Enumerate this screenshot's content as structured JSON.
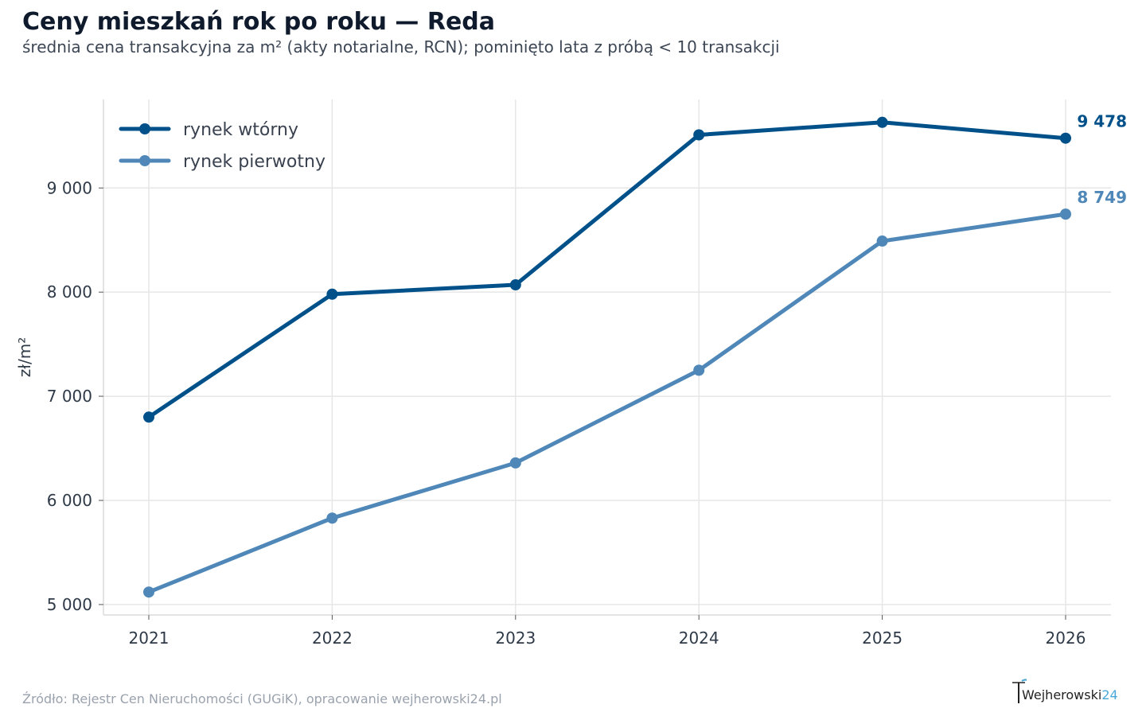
{
  "header": {
    "title": "Ceny mieszkań rok po roku — Reda",
    "subtitle": "średnia cena transakcyjna za m² (akty notarialne, RCN); pominięto lata z próbą < 10 transakcji"
  },
  "footer": {
    "source": "Źródło: Rejestr Cen Nieruchomości (GUGiK), opracowanie wejherowski24.pl",
    "logo_text": "Wejherowski",
    "logo_num": "24"
  },
  "chart_data": {
    "type": "line",
    "title": "Ceny mieszkań rok po roku — Reda",
    "ylabel": "zł/m²",
    "xlabel": "",
    "x": [
      "2021",
      "2022",
      "2023",
      "2024",
      "2025",
      "2026"
    ],
    "ylim": [
      4900,
      9850
    ],
    "yticks": [
      5000,
      6000,
      7000,
      8000,
      9000
    ],
    "ytick_labels": [
      "5 000",
      "6 000",
      "7 000",
      "8 000",
      "9 000"
    ],
    "grid": true,
    "legend_position": "top-left",
    "series": [
      {
        "name": "rynek wtórny",
        "color": "#00508a",
        "values": [
          6800,
          7980,
          8070,
          9510,
          9630,
          9478
        ],
        "end_label": "9 478"
      },
      {
        "name": "rynek pierwotny",
        "color": "#4f88b8",
        "values": [
          5120,
          5830,
          6360,
          7250,
          8490,
          8749
        ],
        "end_label": "8 749"
      }
    ]
  }
}
